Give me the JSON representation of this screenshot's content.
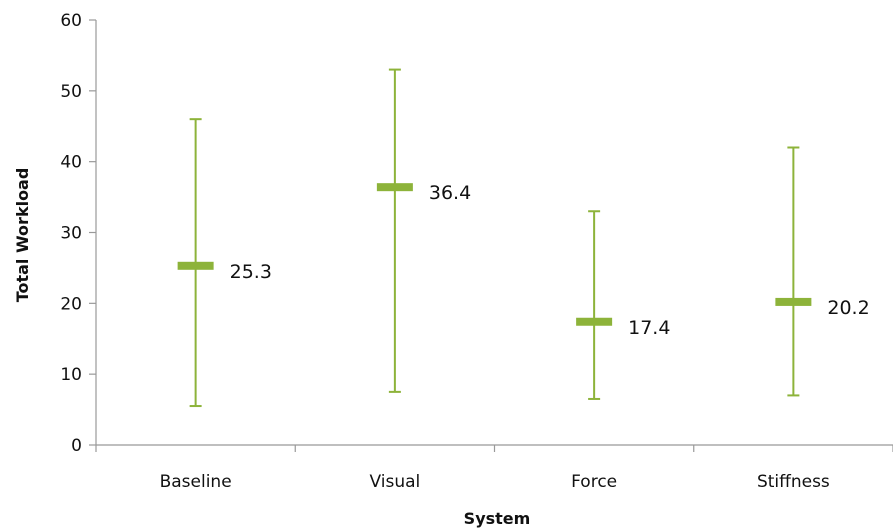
{
  "chart_data": {
    "type": "scatter",
    "xlabel": "System",
    "ylabel": "Total Workload",
    "ylim": [
      0,
      60
    ],
    "yticks": [
      "0",
      "10",
      "20",
      "30",
      "40",
      "50",
      "60"
    ],
    "grid": false,
    "legend": "none",
    "categories": [
      "Baseline",
      "Visual",
      "Force",
      "Stiffness"
    ],
    "series": [
      {
        "values": [
          25.3,
          36.4,
          17.4,
          20.2
        ],
        "value_labels": [
          "25.3",
          "36.4",
          "17.4",
          "20.2"
        ],
        "upper": [
          46.0,
          53.0,
          33.0,
          42.0
        ],
        "lower": [
          5.5,
          7.5,
          6.5,
          7.0
        ],
        "color": "#8db33a"
      }
    ]
  }
}
